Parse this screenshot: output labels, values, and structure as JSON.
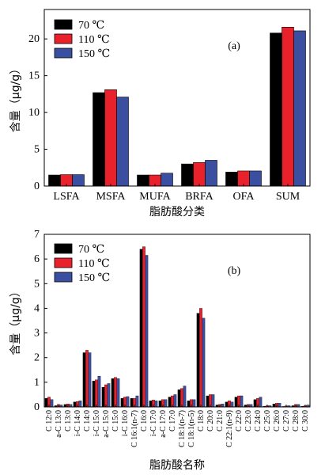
{
  "colors": {
    "s70": "#000000",
    "s110": "#e8212b",
    "s150": "#3a4fa0",
    "axis": "#000000"
  },
  "legend": [
    {
      "label": "70 ℃",
      "color": "#000000"
    },
    {
      "label": "110 ℃",
      "color": "#e8212b"
    },
    {
      "label": "150 ℃",
      "color": "#3a4fa0"
    }
  ],
  "chart_data": [
    {
      "type": "bar",
      "annotation": "(a)",
      "xlabel": "脂肪酸分类",
      "ylabel": "含量（μg/g）",
      "ylim": [
        0,
        24
      ],
      "yticks": [
        0,
        5,
        10,
        15,
        20
      ],
      "grid": false,
      "legend_position": "top-left",
      "categories": [
        "LSFA",
        "MSFA",
        "MUFA",
        "BRFA",
        "OFA",
        "SUM"
      ],
      "series": [
        {
          "name": "70 ℃",
          "values": [
            1.5,
            12.7,
            1.5,
            3.0,
            1.9,
            20.8
          ]
        },
        {
          "name": "110 ℃",
          "values": [
            1.55,
            13.1,
            1.5,
            3.2,
            2.05,
            21.6
          ]
        },
        {
          "name": "150 ℃",
          "values": [
            1.55,
            12.1,
            1.75,
            3.5,
            2.05,
            21.1
          ]
        }
      ]
    },
    {
      "type": "bar",
      "annotation": "(b)",
      "xlabel": "脂肪酸名称",
      "ylabel": "含量（μg/g）",
      "ylim": [
        0,
        7
      ],
      "yticks": [
        0,
        1,
        2,
        3,
        4,
        5,
        6,
        7
      ],
      "grid": false,
      "legend_position": "top-left",
      "categories": [
        "C 12:0",
        "a-C 13:0",
        "C 13:0",
        "i-C 14:0",
        "C 14:0",
        "i-C 15:0",
        "a-C 15:0",
        "C 15:0",
        "i-C 16:0",
        "C 16:1(n-7)",
        "C 16:0",
        "i-C 17:0",
        "a-C 17:0",
        "C 17:0",
        "C 18:1(n-7)",
        "C 18:1(n-5)",
        "C 18:0",
        "C 20:0",
        "C 21:0",
        "C 22:1(n-9)",
        "C 22:0",
        "C 23:0",
        "C 24:0",
        "C 25:0",
        "C 26:0",
        "C 27:0",
        "C 28:0",
        "C 30:0"
      ],
      "series": [
        {
          "name": "70 ℃",
          "values": [
            0.35,
            0.05,
            0.1,
            0.2,
            2.2,
            1.05,
            0.8,
            1.15,
            0.35,
            0.35,
            6.4,
            0.25,
            0.25,
            0.4,
            0.7,
            0.25,
            3.8,
            0.45,
            0.08,
            0.2,
            0.4,
            0.08,
            0.3,
            0.03,
            0.12,
            0.02,
            0.05,
            0.03
          ]
        },
        {
          "name": "110 ℃",
          "values": [
            0.4,
            0.1,
            0.12,
            0.22,
            2.3,
            1.1,
            0.9,
            1.2,
            0.4,
            0.35,
            6.5,
            0.28,
            0.3,
            0.45,
            0.75,
            0.3,
            4.0,
            0.5,
            0.1,
            0.25,
            0.45,
            0.1,
            0.35,
            0.05,
            0.15,
            0.04,
            0.1,
            0.05
          ]
        },
        {
          "name": "150 ℃",
          "values": [
            0.3,
            0.08,
            0.1,
            0.25,
            2.2,
            1.25,
            0.95,
            1.15,
            0.42,
            0.45,
            6.15,
            0.25,
            0.3,
            0.5,
            0.85,
            0.3,
            3.6,
            0.5,
            0.12,
            0.2,
            0.45,
            0.1,
            0.4,
            0.05,
            0.15,
            0.05,
            0.1,
            0.08
          ]
        }
      ]
    }
  ]
}
